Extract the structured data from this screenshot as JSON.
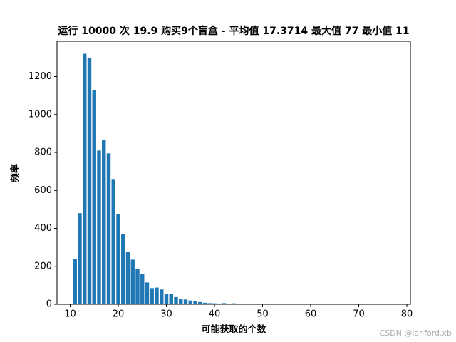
{
  "chart_data": {
    "type": "bar",
    "title": "运行 10000 次 19.9 购买9个盲盒 - 平均值 17.3714 最大值 77 最小值 11",
    "xlabel": "可能获取的个数",
    "ylabel": "频率",
    "watermark": "CSDN @lanford.xb",
    "color": "#1f77b4",
    "x": [
      11,
      12,
      13,
      14,
      15,
      16,
      17,
      18,
      19,
      20,
      21,
      22,
      23,
      24,
      25,
      26,
      27,
      28,
      29,
      30,
      31,
      32,
      33,
      34,
      35,
      36,
      37,
      38,
      39,
      40,
      41,
      42,
      43,
      44,
      45,
      46,
      47,
      48,
      50,
      52,
      55,
      77
    ],
    "values": [
      240,
      480,
      1320,
      1300,
      1130,
      810,
      865,
      795,
      660,
      475,
      370,
      275,
      235,
      185,
      160,
      115,
      85,
      88,
      78,
      55,
      55,
      38,
      30,
      25,
      20,
      15,
      12,
      8,
      6,
      5,
      4,
      6,
      3,
      5,
      1,
      3,
      1,
      2,
      1,
      1,
      1,
      1
    ],
    "xlim": [
      7.26,
      80.74
    ],
    "ylim": [
      0,
      1386
    ],
    "xticks": [
      10,
      20,
      30,
      40,
      50,
      60,
      70,
      80
    ],
    "yticks": [
      0,
      200,
      400,
      600,
      800,
      1000,
      1200
    ]
  }
}
